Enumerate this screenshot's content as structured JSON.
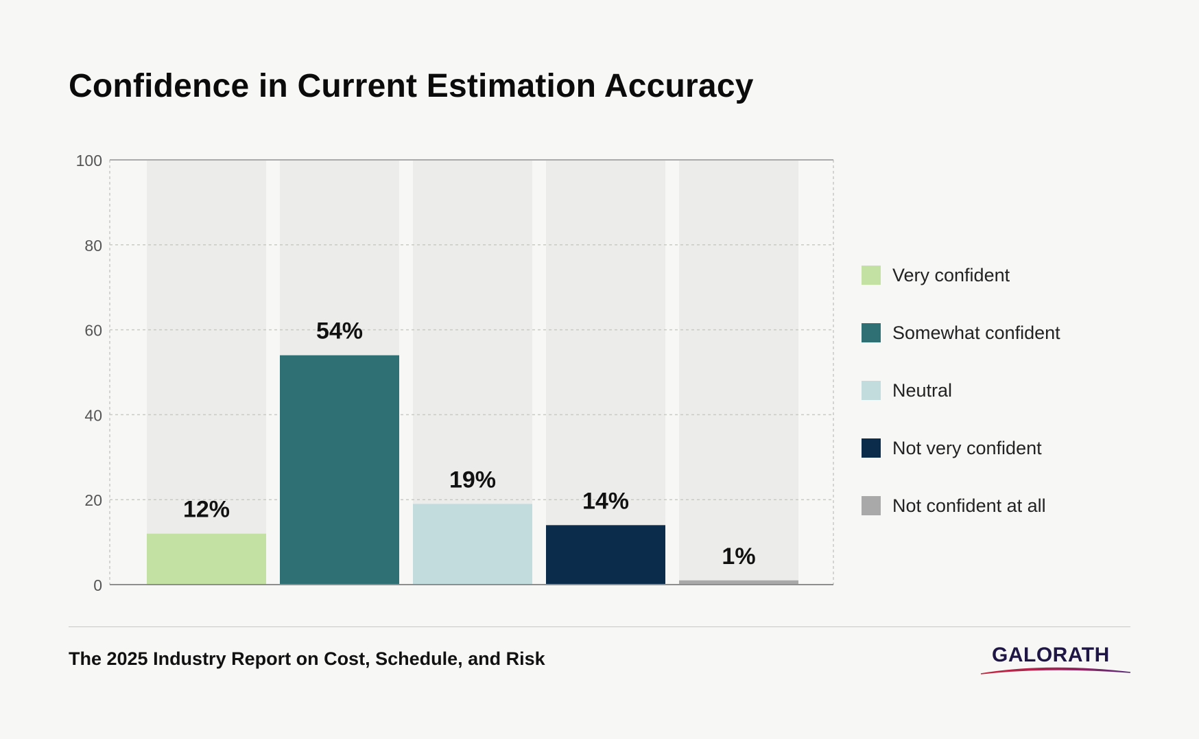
{
  "chart_data": {
    "type": "bar",
    "title": "Confidence in Current Estimation Accuracy",
    "categories": [
      "Very confident",
      "Somewhat confident",
      "Neutral",
      "Not very confident",
      "Not confident at all"
    ],
    "values": [
      12,
      54,
      19,
      14,
      1
    ],
    "data_labels": [
      "12%",
      "54%",
      "19%",
      "14%",
      "1%"
    ],
    "ylim": [
      0,
      100
    ],
    "yticks": [
      0,
      20,
      40,
      60,
      80,
      100
    ],
    "colors": [
      "#c4e1a4",
      "#2f7075",
      "#c2dcde",
      "#0b2d4b",
      "#a9a9a9"
    ],
    "background_bar_color": "#ececea",
    "xlabel": "",
    "ylabel": "",
    "grid": true,
    "legend_position": "right"
  },
  "footer": {
    "source": "The 2025 Industry Report on Cost, Schedule, and Risk",
    "logo_text": "GALORATH",
    "logo_color": "#1f1646"
  }
}
